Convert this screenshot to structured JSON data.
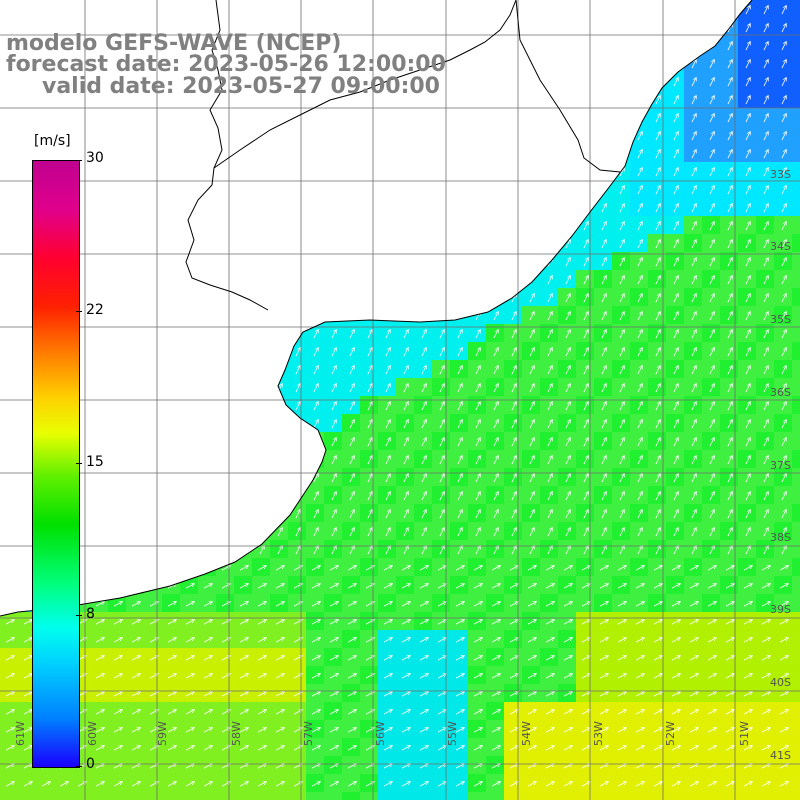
{
  "title": {
    "model": "modelo GEFS-WAVE (NCEP)",
    "forecast": "forecast date: 2023-05-26 12:00:00",
    "valid": "valid date: 2023-05-27 09:00:00"
  },
  "colorbar": {
    "unit": "[m/s]",
    "ticks": [
      "30",
      "22",
      "15",
      "8",
      "0"
    ]
  },
  "lat_labels": [
    "33S",
    "34S",
    "35S",
    "36S",
    "37S",
    "38S",
    "39S",
    "40S",
    "41S"
  ],
  "lon_labels": [
    "61W",
    "60W",
    "59W",
    "58W",
    "57W",
    "56W",
    "55W",
    "54W",
    "53W",
    "52W",
    "51W"
  ],
  "colors": {
    "land": "#ffffff",
    "coast": "#000000",
    "grid": "#6e6e6e",
    "arrow": "#ffffff",
    "title": "#808080"
  }
}
